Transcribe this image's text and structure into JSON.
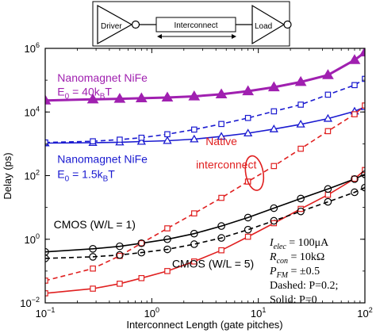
{
  "chart_data": {
    "type": "line",
    "xscale": "log",
    "yscale": "log",
    "xlim": [
      0.1,
      100
    ],
    "ylim": [
      0.01,
      1000000
    ],
    "xlabel": "Interconnect Length (gate pitches)",
    "ylabel": "Delay (ps)",
    "x_ticks": [
      {
        "value": 0.1,
        "base": "10",
        "exp": "−1"
      },
      {
        "value": 1,
        "base": "10",
        "exp": "0"
      },
      {
        "value": 10,
        "base": "10",
        "exp": "1"
      },
      {
        "value": 100,
        "base": "10",
        "exp": "2"
      }
    ],
    "y_ticks": [
      {
        "value": 0.01,
        "base": "10",
        "exp": "−2"
      },
      {
        "value": 1,
        "base": "10",
        "exp": "0"
      },
      {
        "value": 100,
        "base": "10",
        "exp": "2"
      },
      {
        "value": 10000,
        "base": "10",
        "exp": "4"
      },
      {
        "value": 1000000,
        "base": "10",
        "exp": "6"
      }
    ],
    "x": [
      0.1,
      0.28,
      0.5,
      0.8,
      1.4,
      2.5,
      4.5,
      8,
      14,
      25,
      45,
      80,
      100
    ],
    "series": [
      {
        "key": "nife40_solid",
        "color": "#a020b0",
        "style": "solid",
        "marker": "triangle-filled",
        "values": [
          23000,
          25000,
          26000,
          27000,
          28500,
          31000,
          36000,
          45000,
          60000,
          88000,
          145000,
          430000,
          750000
        ]
      },
      {
        "key": "nife15_solid",
        "color": "#1a1ad0",
        "style": "solid",
        "marker": "triangle-open",
        "values": [
          1050,
          1080,
          1120,
          1180,
          1250,
          1400,
          1700,
          2150,
          2900,
          4100,
          6200,
          10500,
          14500
        ]
      },
      {
        "key": "nife15_dashed",
        "color": "#1a1ad0",
        "style": "dashed",
        "marker": "square-open",
        "values": [
          1100,
          1200,
          1350,
          1550,
          2000,
          2800,
          4200,
          6500,
          10500,
          17000,
          35000,
          70000,
          110000
        ]
      },
      {
        "key": "native_solid",
        "color": "#e02020",
        "style": "solid",
        "marker": "square-open",
        "values": [
          0.02,
          0.028,
          0.04,
          0.06,
          0.1,
          0.2,
          0.45,
          1.2,
          3.2,
          9,
          25,
          80,
          150
        ]
      },
      {
        "key": "native_dashed",
        "color": "#e02020",
        "style": "dashed",
        "marker": "square-open",
        "values": [
          0.05,
          0.12,
          0.3,
          0.75,
          2.2,
          6.5,
          20,
          65,
          200,
          700,
          2500,
          8500,
          16000
        ]
      },
      {
        "key": "cmos1_solid",
        "color": "#000000",
        "style": "solid",
        "marker": "circle-open",
        "values": [
          0.4,
          0.5,
          0.6,
          0.75,
          1.0,
          1.5,
          2.6,
          4.8,
          9.5,
          19,
          38,
          78,
          110
        ]
      },
      {
        "key": "cmos5_dashed",
        "color": "#000000",
        "style": "dashed",
        "marker": "circle-open",
        "values": [
          0.25,
          0.28,
          0.32,
          0.38,
          0.48,
          0.7,
          1.1,
          2.0,
          3.8,
          7.5,
          15,
          30,
          42
        ]
      }
    ],
    "labels": [
      {
        "key": "nife40_name",
        "text": "Nanomagnet NiFe",
        "color": "#a020b0",
        "at": [
          0.13,
          90000
        ]
      },
      {
        "key": "nife15_name",
        "text": "Nanomagnet NiFe",
        "color": "#1a1ad0",
        "at": [
          0.13,
          250
        ]
      },
      {
        "key": "native_l1",
        "text": "Native",
        "color": "#e02020",
        "at": [
          3.2,
          900
        ]
      },
      {
        "key": "native_l2",
        "text": "interconnect",
        "color": "#e02020",
        "at": [
          2.6,
          170
        ]
      },
      {
        "key": "cmos1",
        "text": "CMOS (W/L = 1)",
        "color": "#000000",
        "at": [
          0.12,
          2.2
        ]
      },
      {
        "key": "cmos5",
        "text": "CMOS (W/L = 5)",
        "color": "#000000",
        "at": [
          1.55,
          0.13
        ]
      }
    ],
    "energy_labels": [
      {
        "key": "e40",
        "color": "#a020b0",
        "at": [
          0.13,
          33000
        ],
        "prefix": "E",
        "sub": "0",
        "mid": " = 40k",
        "sub2": "B",
        "suffix": "T"
      },
      {
        "key": "e15",
        "color": "#1a1ad0",
        "at": [
          0.13,
          85
        ],
        "prefix": "E",
        "sub": "0",
        "mid": " = 1.5k",
        "sub2": "B",
        "suffix": "T"
      }
    ],
    "params": [
      {
        "key": "ielec",
        "sym": "I",
        "sub": "elec",
        "rest": " = 100μA"
      },
      {
        "key": "rcon",
        "sym": "R",
        "sub": "con",
        "rest": " = 10kΩ"
      },
      {
        "key": "pfm",
        "sym": "P",
        "sub": "FM",
        "rest": " = ±0.5"
      }
    ],
    "notes": [
      "Dashed: P=0.2;",
      "Solid: P=0"
    ],
    "circuit": {
      "driver": "Driver",
      "interconnect": "Interconnect",
      "load": "Load"
    }
  }
}
